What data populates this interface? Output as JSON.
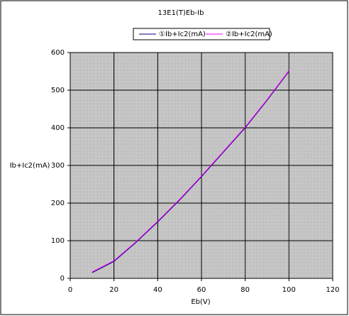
{
  "chart_data": {
    "type": "line",
    "title": "13E1(T)Eb-Ib",
    "x_label": "Eb(V)",
    "y_label": "Ib+Ic2(mA)",
    "x": [
      10,
      20,
      30,
      40,
      50,
      60,
      70,
      80,
      90,
      100
    ],
    "series": [
      {
        "name": "①Ib+Ic2(mA)",
        "color": "#000080",
        "values": [
          15,
          45,
          95,
          150,
          208,
          270,
          335,
          400,
          473,
          550
        ]
      },
      {
        "name": "②Ib+Ic2(mA)",
        "color": "#ff00ff",
        "values": [
          17,
          47,
          97,
          152,
          210,
          272,
          337,
          402,
          475,
          552
        ]
      }
    ],
    "xlim": [
      0,
      120
    ],
    "xticks": [
      0,
      20,
      40,
      60,
      80,
      100,
      120
    ],
    "ylim": [
      0,
      600
    ],
    "yticks": [
      0,
      100,
      200,
      300,
      400,
      500,
      600
    ],
    "grid": true
  }
}
